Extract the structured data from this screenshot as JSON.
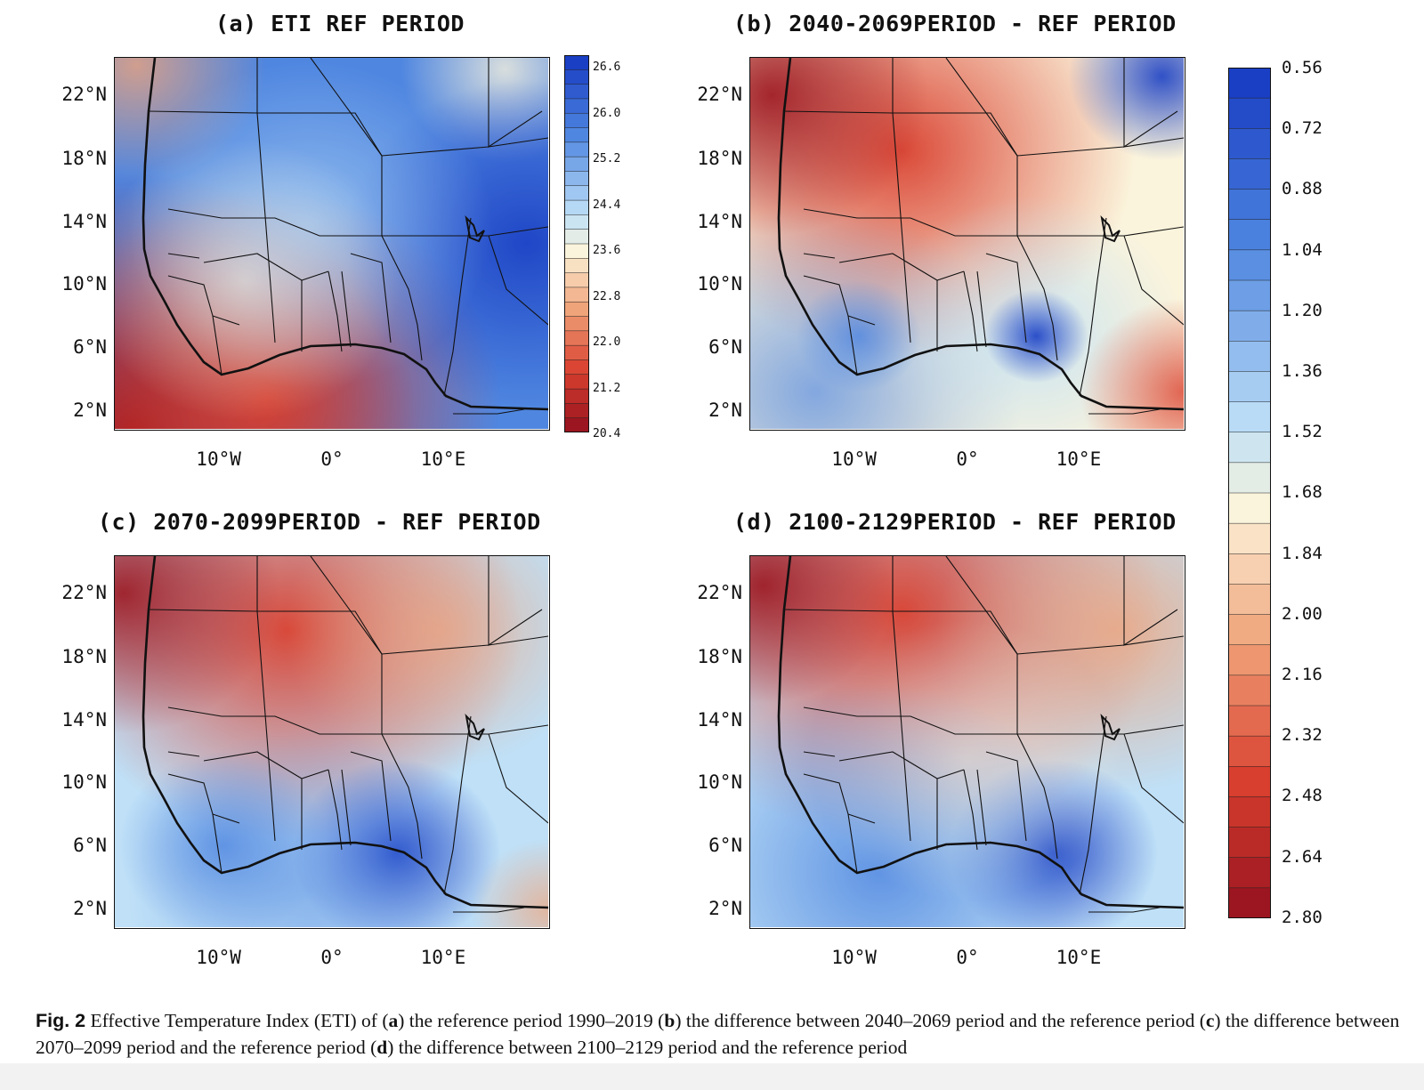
{
  "panels": [
    {
      "title": "(a) ETI REF PERIOD"
    },
    {
      "title": "(b) 2040-2069PERIOD - REF PERIOD"
    },
    {
      "title": "(c) 2070-2099PERIOD - REF PERIOD"
    },
    {
      "title": "(d) 2100-2129PERIOD - REF PERIOD"
    }
  ],
  "lat_labels_a": [
    "22°N",
    "18°N",
    "14°N",
    "10°N",
    "6°N",
    "2°N"
  ],
  "lat_labels_b": [
    "22°N",
    "18°N",
    "14°N",
    "10°N",
    "6°N",
    "2°N"
  ],
  "lat_labels_c": [
    "22°N",
    "18°N",
    "14°N",
    "10°N",
    "6°N",
    "2°N"
  ],
  "lat_labels_d": [
    "22°N",
    "18°N",
    "14°N",
    "10°N",
    "6°N",
    "2°N"
  ],
  "lon_labels": [
    "10°W",
    "0°",
    "10°E"
  ],
  "colorbar_a": [
    "26.6",
    "26.0",
    "25.2",
    "24.4",
    "23.6",
    "22.8",
    "22.0",
    "21.2",
    "20.4"
  ],
  "colorbar_b": [
    "0.56",
    "0.72",
    "0.88",
    "1.04",
    "1.20",
    "1.36",
    "1.52",
    "1.68",
    "1.84",
    "2.00",
    "2.16",
    "2.32",
    "2.48",
    "2.64",
    "2.80"
  ],
  "colors": {
    "deep_blue": "#1a3fc4",
    "mid_blue": "#4f86e0",
    "light_blue": "#bfe0f7",
    "pale": "#fbf4dc",
    "light_red": "#f0a47a",
    "red": "#d9402f",
    "dark_red": "#9b1620"
  },
  "caption": {
    "fig_label": "Fig. 2",
    "text_1": " Effective Temperature Index (ETI) of (",
    "a": "a",
    "text_2": ") the reference period 1990–2019 (",
    "b": "b",
    "text_3": ") the difference between 2040–2069 period and the reference period (",
    "c": "c",
    "text_4": ") the difference between 2070–2099 period and the reference period (",
    "d": "d",
    "text_5": ") the difference between 2100–2129 period and the reference period"
  }
}
